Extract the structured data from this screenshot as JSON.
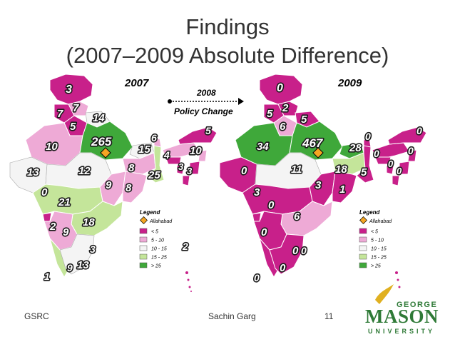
{
  "slide": {
    "title_line1": "Findings",
    "title_line2": "(2007–2009 Absolute Difference)",
    "footer_left": "GSRC",
    "footer_center": "Sachin Garg",
    "page_number": "11"
  },
  "maps": [
    {
      "year": "2007",
      "labels": [
        "3",
        "7",
        "7",
        "5",
        "14",
        "265",
        "6",
        "5",
        "10",
        "15",
        "4",
        "10",
        "3",
        "3",
        "13",
        "12",
        "8",
        "25",
        "9",
        "8",
        "0",
        "21",
        "18",
        "2",
        "9",
        "3",
        "13",
        "9",
        "2",
        "1"
      ]
    },
    {
      "year": "2009",
      "labels": [
        "0",
        "2",
        "5",
        "5",
        "6",
        "34",
        "467",
        "28",
        "0",
        "0",
        "0",
        "0",
        "0",
        "0",
        "11",
        "18",
        "5",
        "3",
        "1",
        "0",
        "3",
        "6",
        "0",
        "0",
        "0",
        "0",
        "0",
        "0"
      ]
    }
  ],
  "policy": {
    "year": "2008",
    "label": "Policy Change"
  },
  "legend": {
    "title": "Legend",
    "marker_label": "Allahabad",
    "classes": [
      {
        "label": "< 5",
        "color": "#c8208a"
      },
      {
        "label": "5 - 10",
        "color": "#eeaad6"
      },
      {
        "label": "10 - 15",
        "color": "#f4f4f4"
      },
      {
        "label": "15 - 25",
        "color": "#c4e59a"
      },
      {
        "label": "> 25",
        "color": "#3fa83a"
      }
    ],
    "marker_color": "#f5a623"
  },
  "logo": {
    "line1": "GEORGE",
    "line2": "MASON",
    "line3": "UNIVERSITY",
    "color": "#2f7a37",
    "accent": "#e0b020"
  }
}
